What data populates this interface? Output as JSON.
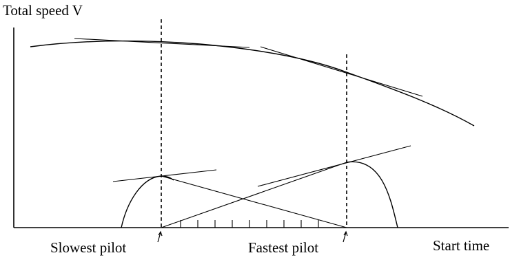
{
  "labels": {
    "y_axis": "Total speed V",
    "x_axis": "Start time",
    "slowest_pilot": "Slowest pilot",
    "fastest_pilot": "Fastest pilot"
  },
  "colors": {
    "ink": "#000000",
    "background": "#ffffff"
  }
}
